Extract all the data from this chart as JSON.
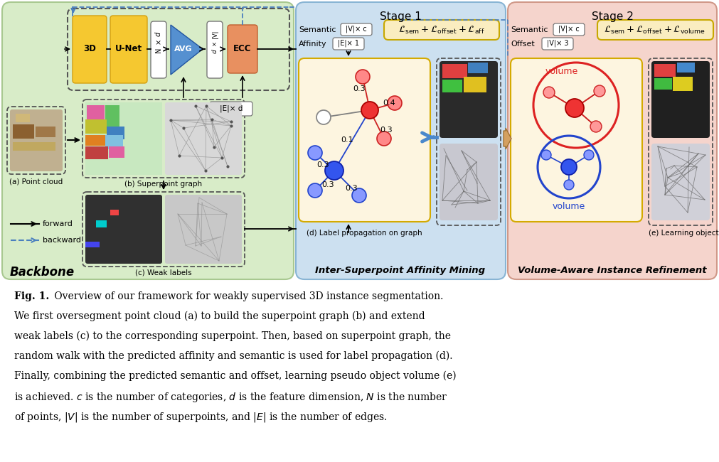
{
  "bg_color": "#ffffff",
  "backbone_bg": "#d8ecc8",
  "stage1_bg": "#cce0f0",
  "stage2_bg": "#f5d4cc",
  "graph_bg": "#fdf5e0",
  "loss_bg": "#faedc0",
  "figure_width": 10.11,
  "figure_height": 6.5,
  "caption_bold": "Fig. 1.",
  "caption_line1": " Overview of our framework for weakly supervised 3D instance segmentation.",
  "caption_line2": "We first oversegment point cloud (a) to build the superpoint graph (b) and extend",
  "caption_line3": "weak labels (c) to the corresponding superpoint. Then, based on superpoint graph, the",
  "caption_line4": "random walk with the predicted affinity and semantic is used for label propagation (d).",
  "caption_line5": "Finally, combining the predicted semantic and offset, learning pseudo object volume (e)",
  "caption_line6": "is achieved. $c$ is the number of categories, $d$ is the feature dimension, $N$ is the number",
  "caption_line7": "of points, $|V|$ is the number of superpoints, and $|E|$ is the number of edges.",
  "stage1_label": "Stage 1",
  "stage2_label": "Stage 2",
  "backbone_label": "Backbone",
  "isam_label": "Inter-Superpoint Affinity Mining",
  "vair_label": "Volume-Aware Instance Refinement",
  "forward_label": "forward",
  "backward_label": "backward"
}
